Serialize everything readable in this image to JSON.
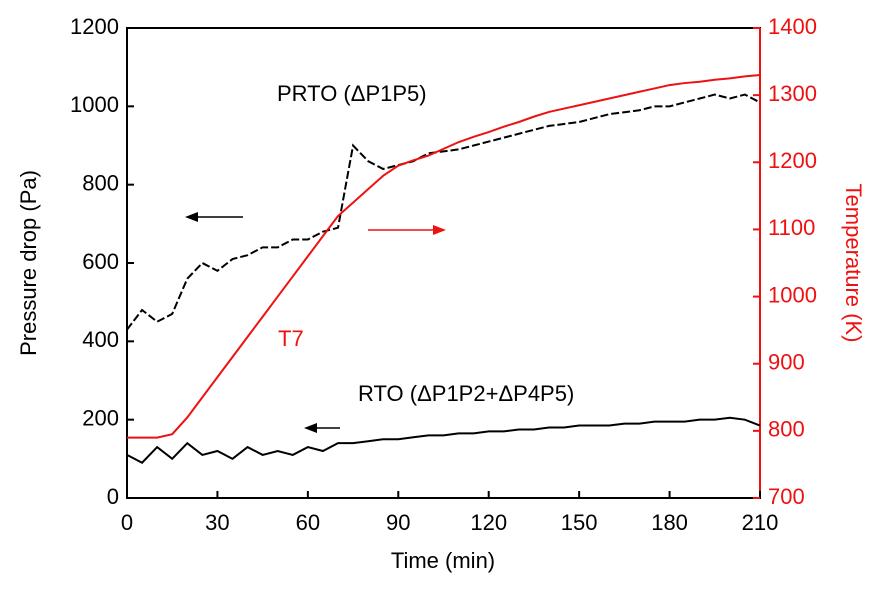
{
  "chart_data": {
    "type": "line",
    "xlabel": "Time (min)",
    "ylabel": "Pressure drop (Pa)",
    "y2label": "Temperature (K)",
    "x": [
      0,
      5,
      10,
      15,
      20,
      25,
      30,
      35,
      40,
      45,
      50,
      55,
      60,
      65,
      70,
      75,
      80,
      85,
      90,
      95,
      100,
      105,
      110,
      115,
      120,
      125,
      130,
      135,
      140,
      145,
      150,
      155,
      160,
      165,
      170,
      175,
      180,
      185,
      190,
      195,
      200,
      205,
      210
    ],
    "series": [
      {
        "name": "PRTO (ΔP1P5)",
        "color": "#000000",
        "dash": true,
        "values": [
          430,
          480,
          450,
          470,
          560,
          600,
          580,
          610,
          620,
          640,
          640,
          660,
          660,
          680,
          690,
          900,
          860,
          840,
          850,
          860,
          880,
          885,
          890,
          900,
          910,
          920,
          930,
          940,
          950,
          955,
          960,
          970,
          980,
          985,
          990,
          1000,
          1000,
          1010,
          1020,
          1030,
          1020,
          1030,
          1010
        ]
      },
      {
        "name": "RTO (ΔP1P2+ΔP4P5)",
        "color": "#000000",
        "values": [
          110,
          90,
          130,
          100,
          140,
          110,
          120,
          100,
          130,
          110,
          120,
          110,
          130,
          120,
          140,
          140,
          145,
          150,
          150,
          155,
          160,
          160,
          165,
          165,
          170,
          170,
          175,
          175,
          180,
          180,
          185,
          185,
          185,
          190,
          190,
          195,
          195,
          195,
          200,
          200,
          205,
          200,
          185
        ]
      },
      {
        "name": "T7",
        "color": "#ee1111",
        "axis": "y2",
        "values": [
          790,
          790,
          790,
          795,
          820,
          850,
          880,
          910,
          940,
          970,
          1000,
          1030,
          1060,
          1090,
          1120,
          1140,
          1160,
          1180,
          1195,
          1203,
          1210,
          1220,
          1230,
          1238,
          1245,
          1253,
          1260,
          1268,
          1275,
          1280,
          1285,
          1290,
          1295,
          1300,
          1305,
          1310,
          1315,
          1318,
          1320,
          1323,
          1325,
          1328,
          1330
        ]
      }
    ],
    "xlim": [
      0,
      210
    ],
    "xticks": [
      0,
      30,
      60,
      90,
      120,
      150,
      180,
      210
    ],
    "ylim": [
      0,
      1200
    ],
    "yticks": [
      0,
      200,
      400,
      600,
      800,
      1000,
      1200
    ],
    "y2lim": [
      700,
      1400
    ],
    "y2ticks": [
      700,
      800,
      900,
      1000,
      1100,
      1200,
      1300,
      1400
    ],
    "y2color": "#ee1111"
  }
}
